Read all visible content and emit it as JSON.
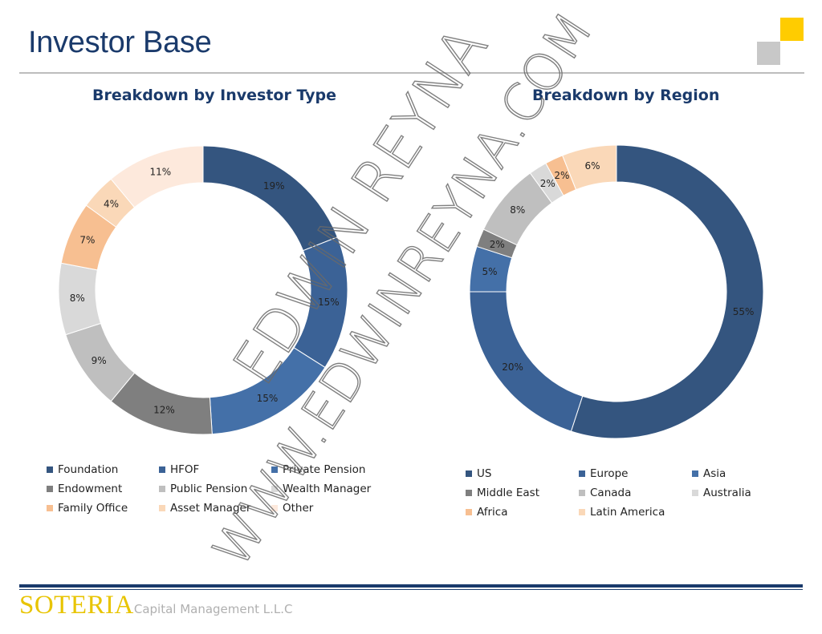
{
  "page": {
    "title": "Investor Base"
  },
  "footer": {
    "brand_name": "SOTERIA",
    "brand_sub": "Capital Management L.L.C"
  },
  "watermark": {
    "line1": "EDWIN REYNA",
    "line2": "WWW.EDWINREYNA.COM"
  },
  "colors": {
    "navy": "#1a3a6b",
    "accent_yellow": "#ffcc00"
  },
  "chart_data": [
    {
      "type": "donut",
      "title": "Breakdown by Investor Type",
      "categories": [
        "Foundation",
        "HFOF",
        "Private Pension",
        "Endowment",
        "Public Pension",
        "Wealth Manager",
        "Family Office",
        "Asset Manager",
        "Other"
      ],
      "values": [
        19,
        15,
        15,
        12,
        9,
        8,
        7,
        4,
        11
      ],
      "value_labels": [
        "19%",
        "15%",
        "15%",
        "12%",
        "9%",
        "8%",
        "7%",
        "4%",
        "11%"
      ],
      "colors": [
        "#34557f",
        "#3b6296",
        "#4470a8",
        "#7f7f7f",
        "#bfbfbf",
        "#d9d9d9",
        "#f7bf91",
        "#fad8b8",
        "#fde9dc"
      ],
      "legend_position": "bottom"
    },
    {
      "type": "donut",
      "title": "Breakdown by Region",
      "categories": [
        "US",
        "Europe",
        "Asia",
        "Middle East",
        "Canada",
        "Australia",
        "Africa",
        "Latin America"
      ],
      "values": [
        55,
        20,
        5,
        2,
        8,
        2,
        2,
        6
      ],
      "value_labels": [
        "55%",
        "20%",
        "5%",
        "2%",
        "8%",
        "2%",
        "2%",
        "6%"
      ],
      "colors": [
        "#34557f",
        "#3b6296",
        "#4470a8",
        "#7f7f7f",
        "#bfbfbf",
        "#d9d9d9",
        "#f7bf91",
        "#fad8b8"
      ],
      "legend_position": "bottom"
    }
  ]
}
